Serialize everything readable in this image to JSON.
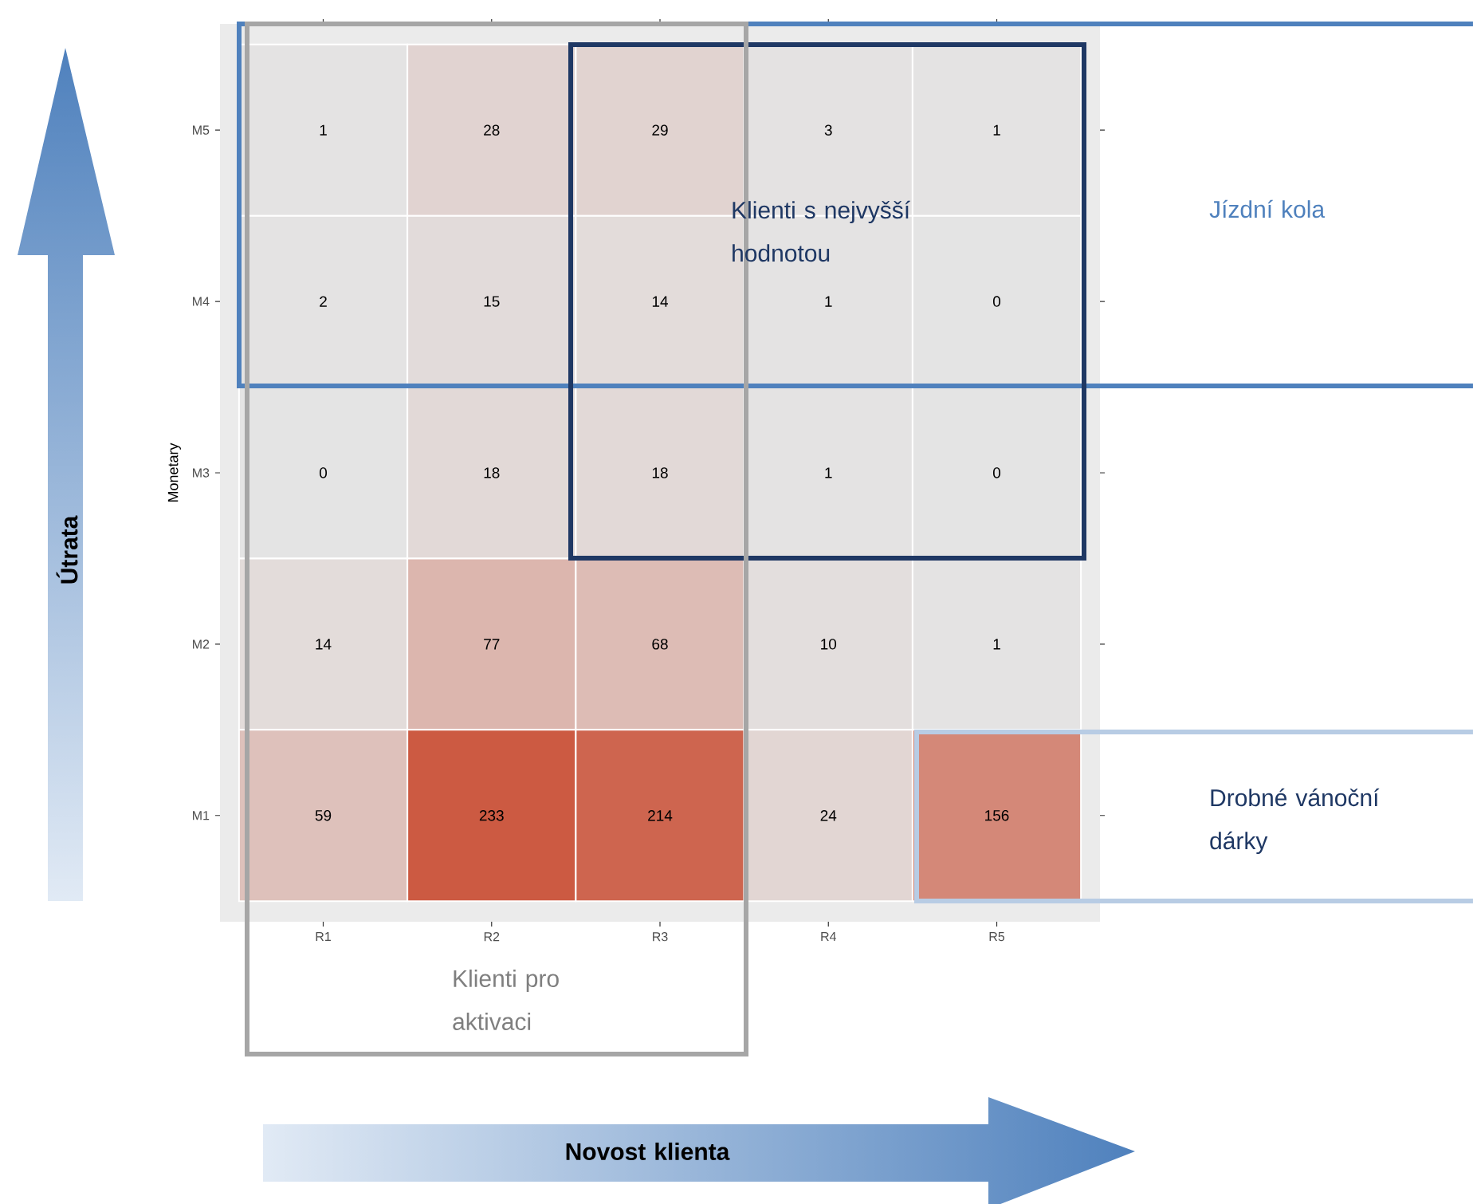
{
  "chart_data": {
    "type": "heatmap",
    "ylabel": "Monetary",
    "categories": [
      "R1",
      "R2",
      "R3",
      "R4",
      "R5"
    ],
    "y_categories": [
      "M5",
      "M4",
      "M3",
      "M2",
      "M1"
    ],
    "cells": [
      [
        1,
        28,
        29,
        3,
        1
      ],
      [
        2,
        15,
        14,
        1,
        0
      ],
      [
        0,
        18,
        18,
        1,
        0
      ],
      [
        14,
        77,
        68,
        10,
        1
      ],
      [
        59,
        233,
        214,
        24,
        156
      ]
    ],
    "color": "#cc5a42",
    "data_labels": true,
    "annotations": [
      "Klienti s nejvyšší hodnotou",
      "Jízdní kola",
      "Drobné vánoční dárky",
      "Klienti pro aktivaci",
      "Útrata",
      "Novost klienta"
    ]
  }
}
